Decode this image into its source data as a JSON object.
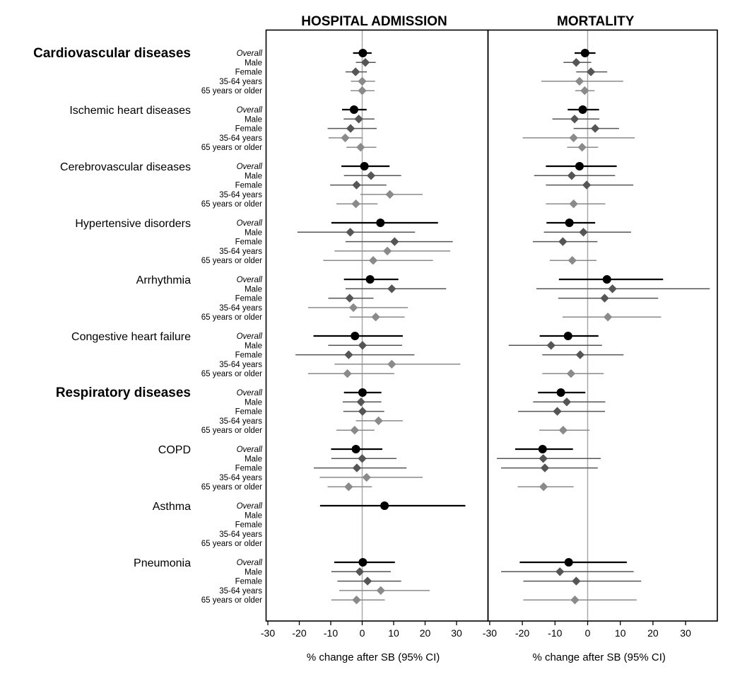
{
  "chart_data": {
    "type": "forest",
    "panels": [
      {
        "key": "admission",
        "title": "HOSPITAL ADMISSION",
        "xlabel": "% change after SB (95% CI)"
      },
      {
        "key": "mortality",
        "title": "MORTALITY",
        "xlabel": "% change after SB (95% CI)"
      }
    ],
    "xlim": [
      -30,
      40
    ],
    "x_ticks": [
      -30,
      -20,
      -10,
      0,
      10,
      20,
      30
    ],
    "reference_line": 0,
    "subgroup_labels": [
      "Overall",
      "Male",
      "Female",
      "35-64 years",
      "65 years or older"
    ],
    "marker_colors": {
      "Overall": "#000000",
      "Male": "#555555",
      "Female": "#555555",
      "35-64 years": "#8a8a8a",
      "65 years or older": "#8a8a8a"
    },
    "diseases": [
      {
        "name": "Cardiovascular diseases",
        "main": true,
        "admission": [
          [
            0.2,
            -2.9,
            3.0
          ],
          [
            1.0,
            -2.0,
            4.3
          ],
          [
            -2.1,
            -5.3,
            1.5
          ],
          [
            0.0,
            -3.6,
            4.1
          ],
          [
            0.0,
            -3.7,
            3.9
          ]
        ],
        "mortality": [
          [
            -0.8,
            -4.0,
            2.4
          ],
          [
            -3.5,
            -7.4,
            1.1
          ],
          [
            1.0,
            -3.5,
            6.0
          ],
          [
            -2.5,
            -14.2,
            10.9
          ],
          [
            -0.9,
            -3.8,
            2.1
          ]
        ]
      },
      {
        "name": "Ischemic heart diseases",
        "main": false,
        "admission": [
          [
            -2.6,
            -6.4,
            1.4
          ],
          [
            -1.1,
            -5.9,
            3.9
          ],
          [
            -3.7,
            -11.0,
            4.6
          ],
          [
            -5.4,
            -10.7,
            0.2
          ],
          [
            -0.5,
            -5.0,
            4.5
          ]
        ],
        "mortality": [
          [
            -1.5,
            -6.1,
            3.5
          ],
          [
            -4.0,
            -10.8,
            3.6
          ],
          [
            2.3,
            -4.3,
            9.6
          ],
          [
            -4.3,
            -19.9,
            14.4
          ],
          [
            -1.7,
            -6.3,
            3.2
          ]
        ]
      },
      {
        "name": "Cerebrovascular diseases",
        "main": false,
        "admission": [
          [
            0.7,
            -6.6,
            8.7
          ],
          [
            2.8,
            -5.8,
            12.4
          ],
          [
            -1.8,
            -10.2,
            7.7
          ],
          [
            8.8,
            -0.6,
            19.2
          ],
          [
            -2.0,
            -8.2,
            4.9
          ]
        ],
        "mortality": [
          [
            -2.5,
            -12.8,
            8.9
          ],
          [
            -4.9,
            -16.4,
            8.4
          ],
          [
            -0.3,
            -12.8,
            14.0
          ],
          null,
          [
            -4.3,
            -12.8,
            5.4
          ]
        ]
      },
      {
        "name": "Hypertensive disorders",
        "main": false,
        "admission": [
          [
            5.8,
            -9.8,
            24.1
          ],
          [
            -3.8,
            -20.6,
            16.8
          ],
          [
            10.3,
            -5.3,
            28.8
          ],
          [
            8.0,
            -8.8,
            28.0
          ],
          [
            3.5,
            -12.4,
            22.5
          ]
        ],
        "mortality": [
          [
            -5.6,
            -12.6,
            2.3
          ],
          [
            -1.3,
            -13.4,
            13.3
          ],
          [
            -7.6,
            -16.8,
            3.0
          ],
          null,
          [
            -4.7,
            -11.6,
            2.7
          ]
        ]
      },
      {
        "name": "Arrhythmia",
        "main": false,
        "admission": [
          [
            2.5,
            -5.8,
            11.5
          ],
          [
            9.4,
            -5.3,
            26.7
          ],
          [
            -4.0,
            -10.8,
            3.6
          ],
          [
            -2.8,
            -17.2,
            14.5
          ],
          [
            4.3,
            -4.0,
            13.5
          ]
        ],
        "mortality": [
          [
            5.9,
            -8.8,
            23.1
          ],
          [
            7.6,
            -15.7,
            37.4
          ],
          [
            5.2,
            -9.0,
            21.6
          ],
          null,
          [
            6.2,
            -7.7,
            22.5
          ]
        ]
      },
      {
        "name": "Congestive heart failure",
        "main": false,
        "admission": [
          [
            -2.3,
            -15.5,
            12.9
          ],
          [
            0.1,
            -10.8,
            12.7
          ],
          [
            -4.3,
            -21.2,
            16.6
          ],
          [
            9.4,
            -8.8,
            31.2
          ],
          [
            -4.7,
            -17.2,
            10.2
          ]
        ],
        "mortality": [
          [
            -6.0,
            -14.7,
            3.3
          ],
          [
            -11.2,
            -24.2,
            4.4
          ],
          [
            -2.3,
            -13.9,
            11.0
          ],
          null,
          [
            -5.1,
            -13.9,
            4.9
          ]
        ]
      },
      {
        "name": "Respiratory diseases",
        "main": true,
        "admission": [
          [
            0.1,
            -5.8,
            6.1
          ],
          [
            -0.4,
            -6.2,
            6.1
          ],
          [
            0.1,
            -6.0,
            7.0
          ],
          [
            5.2,
            -2.0,
            12.9
          ],
          [
            -2.4,
            -8.2,
            3.9
          ]
        ],
        "mortality": [
          [
            -8.2,
            -15.2,
            -0.7
          ],
          [
            -6.4,
            -16.7,
            5.4
          ],
          [
            -9.3,
            -21.3,
            5.3
          ],
          null,
          [
            -7.5,
            -14.8,
            0.6
          ]
        ]
      },
      {
        "name": "COPD",
        "main": false,
        "admission": [
          [
            -2.0,
            -9.9,
            6.4
          ],
          [
            0.0,
            -9.8,
            10.9
          ],
          [
            -1.7,
            -15.4,
            14.1
          ],
          [
            1.4,
            -13.5,
            19.2
          ],
          [
            -4.3,
            -11.0,
            3.1
          ]
        ],
        "mortality": [
          [
            -13.8,
            -22.2,
            -4.5
          ],
          [
            -13.6,
            -27.8,
            4.0
          ],
          [
            -13.1,
            -26.5,
            3.1
          ],
          null,
          [
            -13.5,
            -21.4,
            -4.3
          ]
        ]
      },
      {
        "name": "Asthma",
        "main": false,
        "admission": [
          [
            7.1,
            -13.4,
            32.8
          ],
          null,
          null,
          null,
          null
        ],
        "mortality": [
          null,
          null,
          null,
          null,
          null
        ]
      },
      {
        "name": "Pneumonia",
        "main": false,
        "admission": [
          [
            0.2,
            -8.9,
            10.4
          ],
          [
            -0.8,
            -9.8,
            9.1
          ],
          [
            1.7,
            -7.9,
            12.4
          ],
          [
            5.9,
            -7.3,
            21.5
          ],
          [
            -1.8,
            -9.8,
            7.2
          ]
        ],
        "mortality": [
          [
            -5.8,
            -20.8,
            12.0
          ],
          [
            -8.5,
            -26.5,
            14.1
          ],
          [
            -3.5,
            -19.7,
            16.4
          ],
          null,
          [
            -3.9,
            -19.7,
            15.0
          ]
        ]
      }
    ]
  }
}
